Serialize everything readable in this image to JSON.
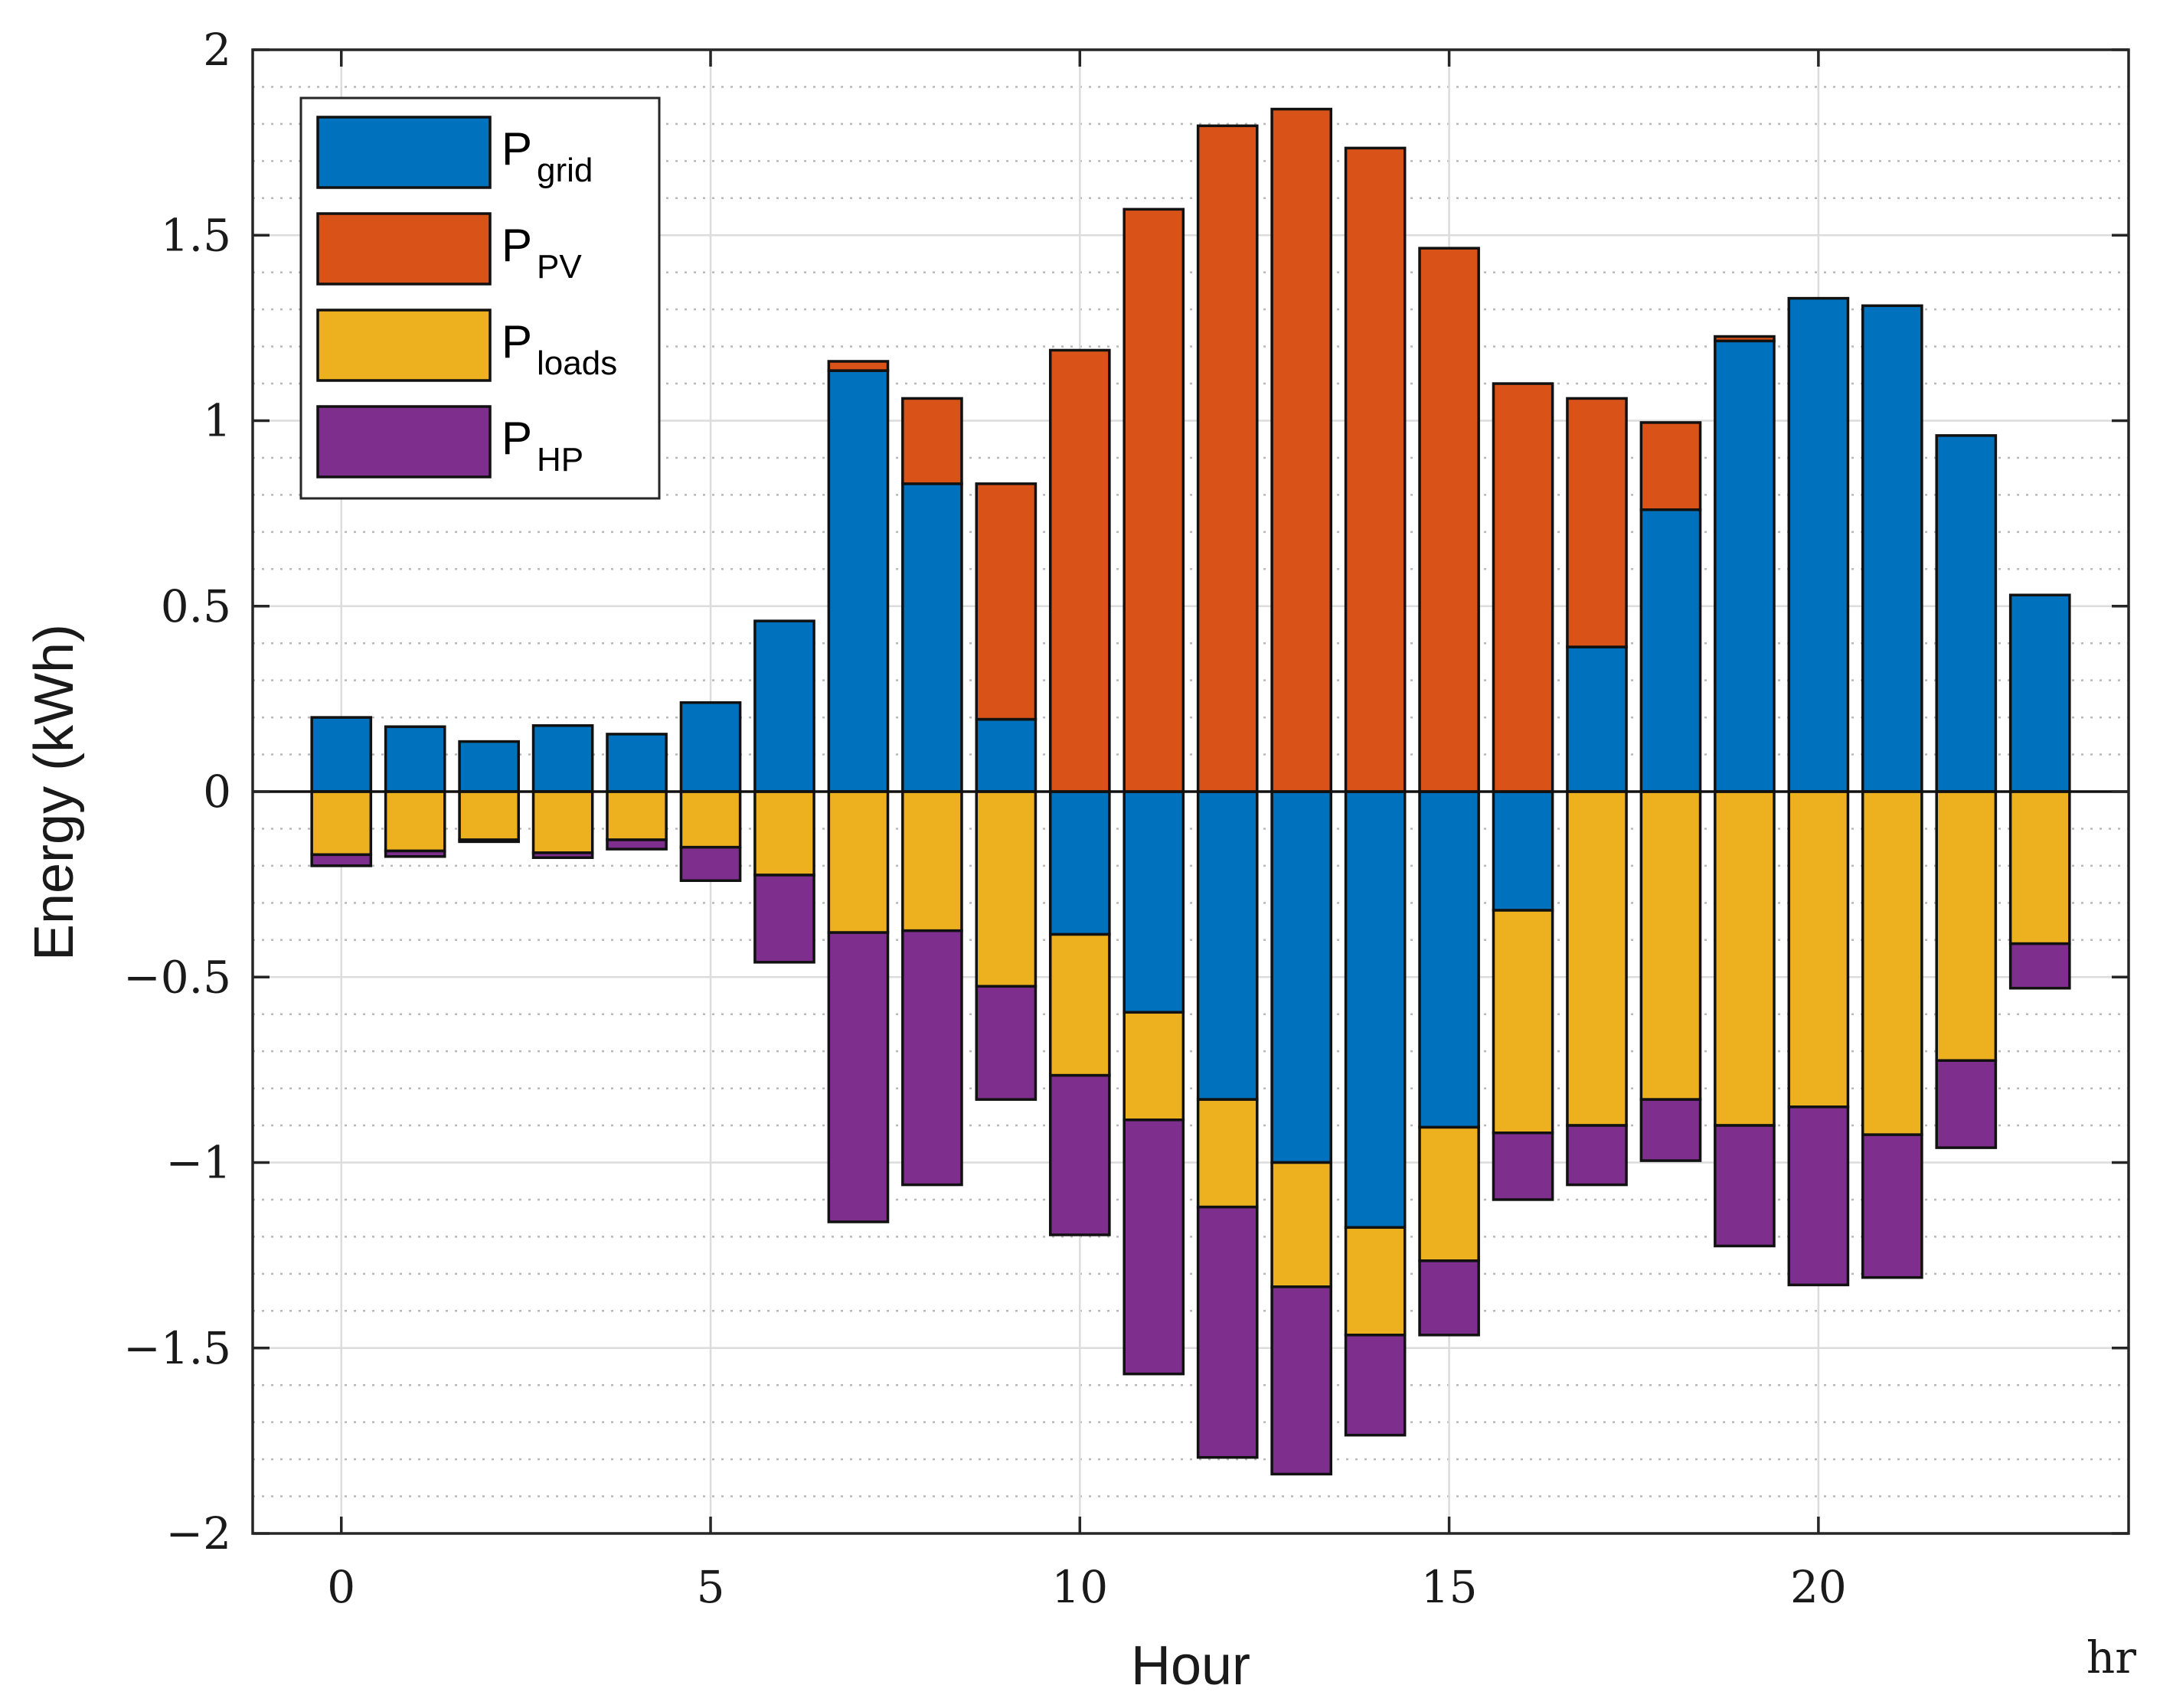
{
  "chart_data": {
    "type": "bar",
    "stacked": true,
    "xlabel": "Hour",
    "ylabel": "Energy (kWh)",
    "x_unit": "hr",
    "xlim": [
      -1.2,
      24.2
    ],
    "ylim": [
      -2,
      2
    ],
    "x_ticks": [
      0,
      5,
      10,
      15,
      20
    ],
    "x_tick_labels": [
      "0",
      "5",
      "10",
      "15",
      "20"
    ],
    "y_ticks": [
      -2,
      -1.5,
      -1,
      -0.5,
      0,
      0.5,
      1,
      1.5,
      2
    ],
    "y_tick_labels": [
      "−2",
      "−1.5",
      "−1",
      "−0.5",
      "0",
      "0.5",
      "1",
      "1.5",
      "2"
    ],
    "grid": true,
    "minor_grid": true,
    "legend_position": "top-left",
    "x": [
      0,
      1,
      2,
      3,
      4,
      5,
      6,
      7,
      8,
      9,
      10,
      11,
      12,
      13,
      14,
      15,
      16,
      17,
      18,
      19,
      20,
      21,
      22,
      23
    ],
    "series": [
      {
        "name": "P_grid",
        "label_main": "P",
        "label_sub": "grid",
        "color": "#0072BD",
        "values": [
          0.2,
          0.175,
          0.135,
          0.178,
          0.155,
          0.24,
          0.46,
          1.135,
          0.83,
          0.195,
          -0.385,
          -0.595,
          -0.83,
          -1.0,
          -1.175,
          -0.905,
          -0.32,
          0.39,
          0.76,
          1.215,
          1.33,
          1.31,
          0.96,
          0.53
        ]
      },
      {
        "name": "P_PV",
        "label_main": "P",
        "label_sub": "PV",
        "color": "#D95319",
        "values": [
          0,
          0,
          0,
          0,
          0,
          0,
          0,
          0.025,
          0.23,
          0.635,
          1.19,
          1.57,
          1.795,
          1.84,
          1.735,
          1.465,
          1.1,
          0.67,
          0.235,
          0.012,
          0,
          0,
          0,
          0
        ]
      },
      {
        "name": "P_loads",
        "label_main": "P",
        "label_sub": "loads",
        "color": "#EDB120",
        "values": [
          -0.17,
          -0.16,
          -0.13,
          -0.165,
          -0.13,
          -0.15,
          -0.225,
          -0.38,
          -0.375,
          -0.525,
          -0.38,
          -0.29,
          -0.29,
          -0.335,
          -0.29,
          -0.36,
          -0.6,
          -0.9,
          -0.83,
          -0.9,
          -0.85,
          -0.925,
          -0.725,
          -0.41
        ]
      },
      {
        "name": "P_HP",
        "label_main": "P",
        "label_sub": "HP",
        "color": "#7E2F8E",
        "values": [
          -0.03,
          -0.015,
          -0.005,
          -0.013,
          -0.025,
          -0.09,
          -0.235,
          -0.78,
          -0.685,
          -0.305,
          -0.43,
          -0.685,
          -0.675,
          -0.505,
          -0.27,
          -0.2,
          -0.18,
          -0.16,
          -0.165,
          -0.325,
          -0.48,
          -0.385,
          -0.235,
          -0.12
        ]
      }
    ]
  }
}
